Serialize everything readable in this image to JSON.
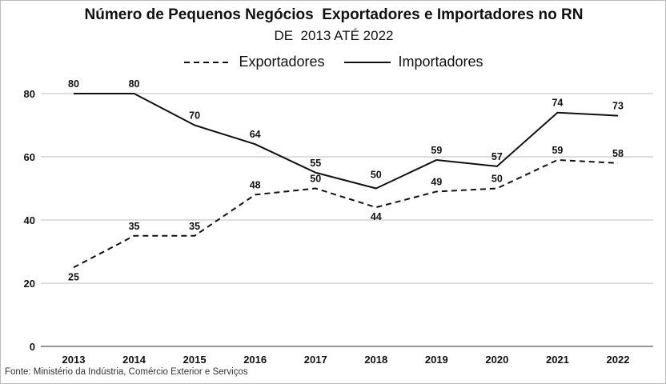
{
  "title": "Número de Pequenos Negócios  Exportadores e Importadores no RN",
  "subtitle": "DE  2013 ATÉ 2022",
  "source": "Fonte: Ministério da Indústria, Comércio Exterior e Serviços",
  "chart_data": {
    "type": "line",
    "title": "Número de Pequenos Negócios  Exportadores e Importadores no RN",
    "subtitle": "DE  2013 ATÉ 2022",
    "categories": [
      "2013",
      "2014",
      "2015",
      "2016",
      "2017",
      "2018",
      "2019",
      "2020",
      "2021",
      "2022"
    ],
    "series": [
      {
        "name": "Exportadores",
        "values": [
          25,
          35,
          35,
          48,
          50,
          44,
          49,
          50,
          59,
          58
        ],
        "style": "dashed",
        "color": "#111111"
      },
      {
        "name": "Importadores",
        "values": [
          80,
          80,
          70,
          64,
          55,
          50,
          59,
          57,
          74,
          73
        ],
        "style": "solid",
        "color": "#111111"
      }
    ],
    "yticks": [
      0,
      20,
      40,
      60,
      80
    ],
    "ylim": [
      0,
      80
    ],
    "grid": true,
    "legend": "top-center"
  }
}
